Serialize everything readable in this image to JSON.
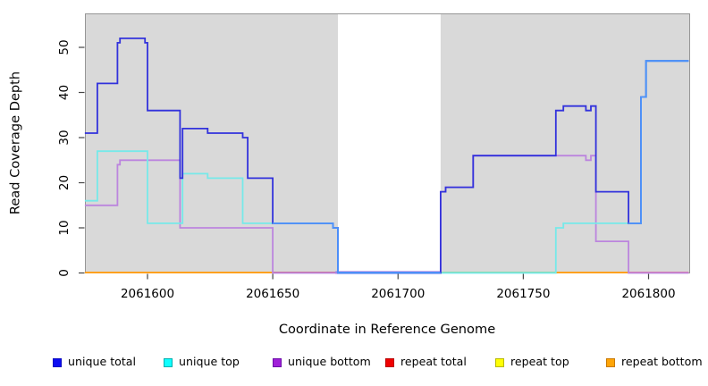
{
  "chart_data": {
    "type": "line",
    "subtype": "step-coverage",
    "title": "",
    "xlabel": "Coordinate in Reference Genome",
    "ylabel": "Read Coverage Depth",
    "xlim": [
      2061575,
      2061816
    ],
    "ylim": [
      0,
      57
    ],
    "x_ticks": [
      2061600,
      2061650,
      2061700,
      2061750,
      2061800
    ],
    "y_ticks": [
      0,
      10,
      20,
      30,
      40,
      50
    ],
    "grid": false,
    "panel_bg": "#D9D9D9",
    "panel_border": "#969696",
    "gap_region": {
      "x_start": 2061676,
      "x_end": 2061717,
      "fill": "#FFFFFF"
    },
    "legend_position": "bottom",
    "series": [
      {
        "name": "unique total",
        "color": "#3232DC",
        "overlap_color": "#4D94FA",
        "marker_fill": "#0D0DF2",
        "marker_border": "#0909C0",
        "steps": [
          [
            2061575,
            31
          ],
          [
            2061580,
            42
          ],
          [
            2061588,
            51
          ],
          [
            2061589,
            52
          ],
          [
            2061599,
            51
          ],
          [
            2061600,
            36
          ],
          [
            2061613,
            21
          ],
          [
            2061614,
            32
          ],
          [
            2061624,
            31
          ],
          [
            2061638,
            30
          ],
          [
            2061640,
            21
          ],
          [
            2061650,
            11
          ],
          [
            2061674,
            10
          ],
          [
            2061676,
            0
          ],
          [
            2061717,
            18
          ],
          [
            2061719,
            19
          ],
          [
            2061730,
            26
          ],
          [
            2061763,
            36
          ],
          [
            2061766,
            37
          ],
          [
            2061775,
            36
          ],
          [
            2061777,
            37
          ],
          [
            2061779,
            18
          ],
          [
            2061792,
            11
          ],
          [
            2061797,
            39
          ],
          [
            2061799,
            47
          ],
          [
            2061816,
            47
          ]
        ]
      },
      {
        "name": "unique top",
        "color": "#76E9E9",
        "marker_fill": "#0FFFFF",
        "marker_border": "#00B0B0",
        "steps": [
          [
            2061575,
            16
          ],
          [
            2061580,
            27
          ],
          [
            2061600,
            11
          ],
          [
            2061614,
            22
          ],
          [
            2061624,
            21
          ],
          [
            2061638,
            11
          ],
          [
            2061674,
            10
          ],
          [
            2061676,
            0
          ],
          [
            2061763,
            10
          ],
          [
            2061766,
            11
          ],
          [
            2061797,
            39
          ],
          [
            2061799,
            47
          ],
          [
            2061816,
            47
          ]
        ]
      },
      {
        "name": "unique bottom",
        "color": "#BC85DE",
        "marker_fill": "#A020D8",
        "marker_border": "#6A0DA8",
        "steps": [
          [
            2061575,
            15
          ],
          [
            2061588,
            24
          ],
          [
            2061589,
            25
          ],
          [
            2061613,
            10
          ],
          [
            2061650,
            0
          ],
          [
            2061717,
            18
          ],
          [
            2061719,
            19
          ],
          [
            2061730,
            26
          ],
          [
            2061775,
            25
          ],
          [
            2061777,
            26
          ],
          [
            2061779,
            7
          ],
          [
            2061792,
            0
          ],
          [
            2061816,
            0
          ]
        ]
      },
      {
        "name": "repeat total",
        "color": "#D06C7E",
        "marker_fill": "#F00000",
        "marker_border": "#B80000",
        "steps": [
          [
            2061575,
            0
          ],
          [
            2061816,
            0
          ]
        ]
      },
      {
        "name": "repeat top",
        "color": "#FFFF05",
        "marker_fill": "#FFFF05",
        "marker_border": "#B8B800",
        "steps": [
          [
            2061575,
            0
          ],
          [
            2061816,
            0
          ]
        ]
      },
      {
        "name": "repeat bottom",
        "color": "#FFA01E",
        "marker_fill": "#FFA508",
        "marker_border": "#C87800",
        "steps": [
          [
            2061575,
            0
          ],
          [
            2061816,
            0
          ]
        ]
      }
    ],
    "baseline_segments": [
      {
        "x_start": 2061575,
        "x_end": 2061650,
        "color": "#FFA01E",
        "series": "repeat bottom"
      },
      {
        "x_start": 2061650,
        "x_end": 2061675,
        "color": "#D06C7E",
        "series": "repeat total"
      },
      {
        "x_start": 2061675,
        "x_end": 2061717,
        "color": "#BC85DE",
        "series": "unique bottom"
      },
      {
        "x_start": 2061675,
        "x_end": 2061717,
        "color": "#4D94FA",
        "series": "unique total"
      },
      {
        "x_start": 2061717,
        "x_end": 2061763,
        "color": "#90D190",
        "series": "repeat top + unique top"
      },
      {
        "x_start": 2061763,
        "x_end": 2061792,
        "color": "#FFA01E",
        "series": "repeat bottom"
      },
      {
        "x_start": 2061792,
        "x_end": 2061816,
        "color": "#E0799B",
        "series": "repeat total + unique bottom"
      }
    ],
    "overlap_segments": [
      {
        "steps": [
          [
            2061650,
            11
          ],
          [
            2061674,
            10
          ],
          [
            2061676,
            0
          ],
          [
            2061717,
            0
          ]
        ]
      },
      {
        "steps": [
          [
            2061792,
            11
          ],
          [
            2061797,
            39
          ],
          [
            2061799,
            47
          ],
          [
            2061816,
            47
          ]
        ]
      }
    ]
  }
}
